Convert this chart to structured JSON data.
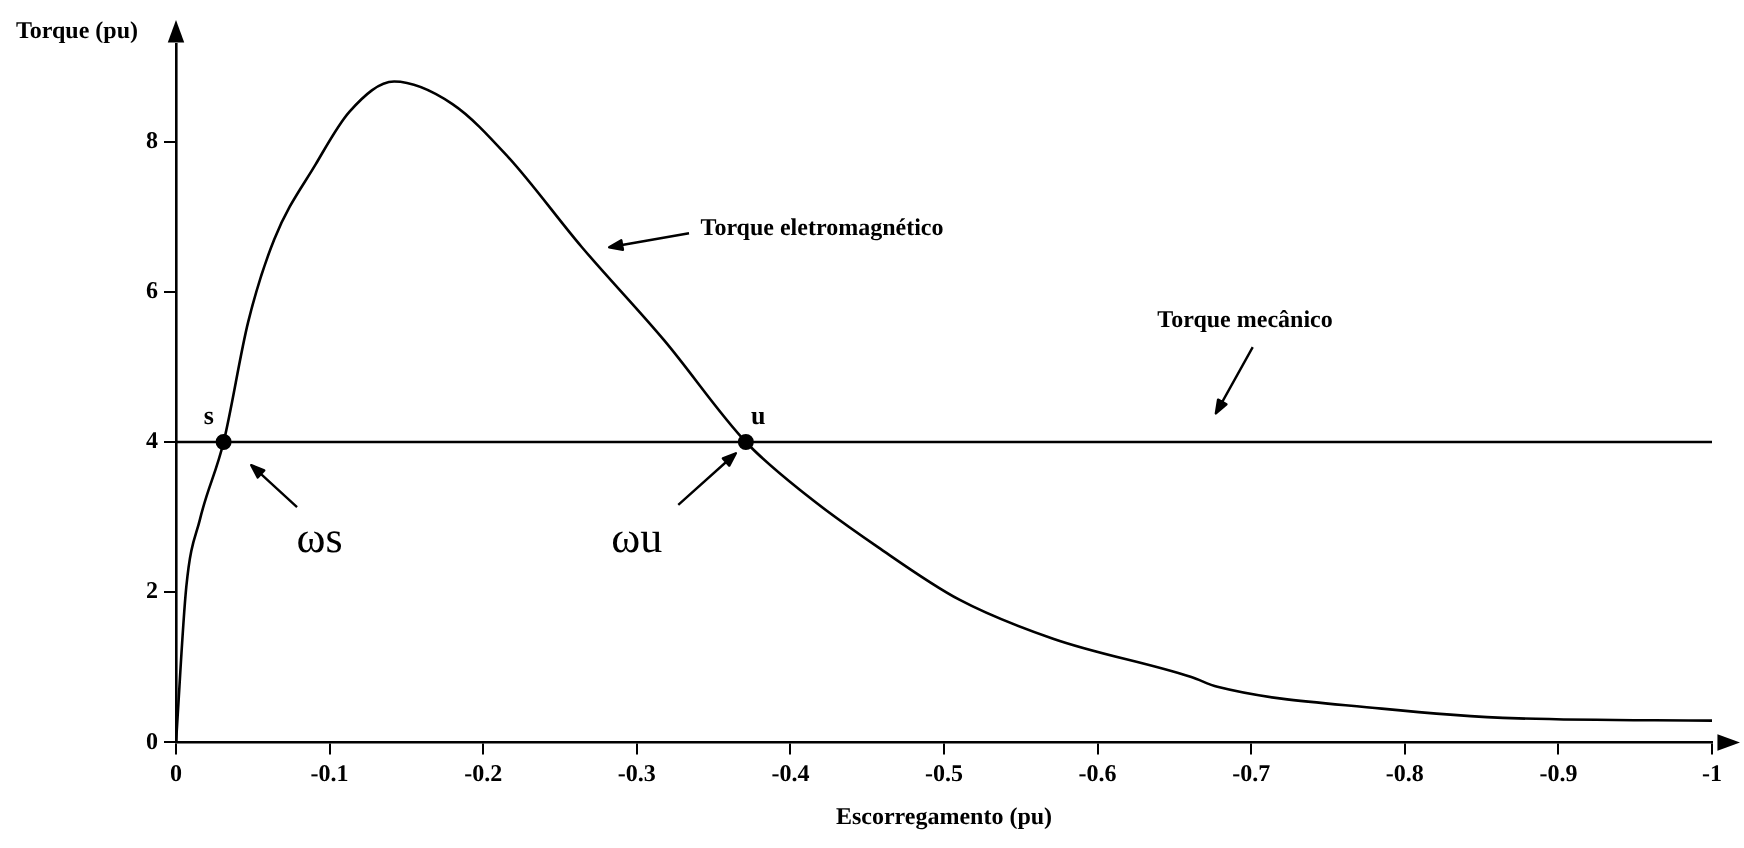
{
  "chart_data": {
    "type": "line",
    "xlabel": "Escorregamento (pu)",
    "ylabel": "Torque (pu)",
    "xlim": [
      0,
      -1
    ],
    "xticks": [
      0,
      -0.1,
      -0.2,
      -0.3,
      -0.4,
      -0.5,
      -0.6,
      -0.7,
      -0.8,
      -0.9,
      -1
    ],
    "ylim": [
      0,
      9.3
    ],
    "yticks": [
      0,
      2,
      4,
      6,
      8
    ],
    "grid": false,
    "legend": false,
    "series": [
      {
        "color": "#000000",
        "x": [
          0,
          -0.0067,
          -0.0156,
          -0.031,
          -0.047,
          -0.064,
          -0.091,
          -0.113,
          -0.142,
          -0.18,
          -0.216,
          -0.264,
          -0.318,
          -0.371,
          -0.41,
          -0.457,
          -0.51,
          -0.571,
          -0.661,
          -0.678,
          -0.785,
          -0.874,
          -1
        ],
        "values": [
          0,
          2.07,
          2.97,
          4,
          5.6,
          6.7,
          7.7,
          8.4,
          8.8,
          8.5,
          7.8,
          6.6,
          5.35,
          4,
          3.3,
          2.6,
          1.9,
          1.38,
          0.87,
          0.74,
          0.45,
          0.32,
          0.29
        ]
      },
      {
        "color": "#000000",
        "x": [
          0,
          -1
        ],
        "values": [
          4,
          4
        ]
      },
      {
        "type": "scatter",
        "color": "#000000",
        "marker": "circle",
        "x": [
          -0.031,
          -0.371
        ],
        "values": [
          4,
          4
        ]
      }
    ],
    "annotations": [
      "Torque eletromagnético",
      "Torque mecânico",
      "s",
      "u",
      "ωs",
      "ωu"
    ]
  }
}
